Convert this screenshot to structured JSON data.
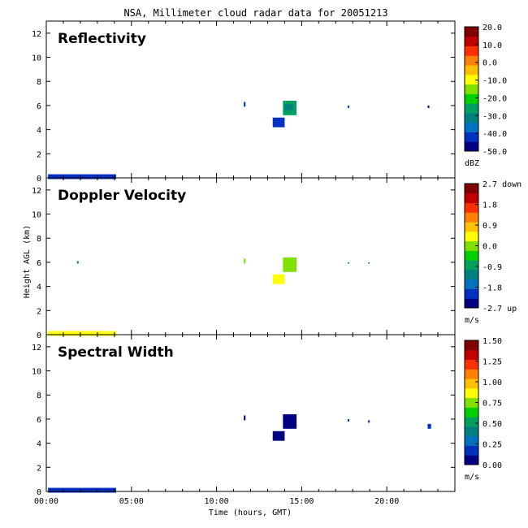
{
  "chart_data": {
    "type": "heatmap",
    "title": "NSA, Millimeter cloud radar data for 20051213",
    "xlabel": "Time (hours, GMT)",
    "ylabel": "Height AGL (km)",
    "xlim": [
      0,
      24
    ],
    "ylim": [
      0,
      13
    ],
    "x_ticks": [
      {
        "value": 0,
        "label": "00:00"
      },
      {
        "value": 5,
        "label": "05:00"
      },
      {
        "value": 10,
        "label": "10:00"
      },
      {
        "value": 15,
        "label": "15:00"
      },
      {
        "value": 20,
        "label": "20:00"
      }
    ],
    "y_ticks": [
      0,
      2,
      4,
      6,
      8,
      10,
      12
    ],
    "panels": [
      {
        "name": "Reflectivity",
        "colorbar": {
          "unit": "dBZ",
          "min": -50,
          "max": 20,
          "ticks": [
            {
              "value": 20,
              "label": "20.0"
            },
            {
              "value": 10,
              "label": "10.0"
            },
            {
              "value": 0,
              "label": "0.0"
            },
            {
              "value": -10,
              "label": "-10.0"
            },
            {
              "value": -20,
              "label": "-20.0"
            },
            {
              "value": -30,
              "label": "-30.0"
            },
            {
              "value": -40,
              "label": "-40.0"
            },
            {
              "value": -50,
              "label": "-50.0"
            }
          ]
        },
        "echoes": [
          {
            "t0": 11.6,
            "t1": 11.7,
            "h0": 5.9,
            "h1": 6.3,
            "value": -42
          },
          {
            "t0": 13.3,
            "t1": 14.0,
            "h0": 4.2,
            "h1": 5.0,
            "value": -43
          },
          {
            "t0": 13.9,
            "t1": 14.7,
            "h0": 5.2,
            "h1": 6.4,
            "value": -28
          },
          {
            "t0": 14.0,
            "t1": 14.5,
            "h0": 5.6,
            "h1": 6.1,
            "value": -33
          },
          {
            "t0": 17.7,
            "t1": 17.8,
            "h0": 5.8,
            "h1": 6.0,
            "value": -42
          },
          {
            "t0": 22.4,
            "t1": 22.5,
            "h0": 5.8,
            "h1": 6.0,
            "value": -45
          },
          {
            "t0": 0.1,
            "t1": 4.1,
            "h0": -0.1,
            "h1": 0.3,
            "value": -42
          }
        ]
      },
      {
        "name": "Doppler Velocity",
        "colorbar": {
          "unit": "m/s",
          "min": -2.7,
          "max": 2.7,
          "ticks": [
            {
              "value": 2.7,
              "label": "2.7 down"
            },
            {
              "value": 1.8,
              "label": "1.8"
            },
            {
              "value": 0.9,
              "label": "0.9"
            },
            {
              "value": 0.0,
              "label": "0.0"
            },
            {
              "value": -0.9,
              "label": "-0.9"
            },
            {
              "value": -1.8,
              "label": "-1.8"
            },
            {
              "value": -2.7,
              "label": "-2.7 up"
            }
          ]
        },
        "echoes": [
          {
            "t0": 11.6,
            "t1": 11.7,
            "h0": 5.9,
            "h1": 6.3,
            "value": 0.2
          },
          {
            "t0": 13.3,
            "t1": 14.0,
            "h0": 4.2,
            "h1": 5.0,
            "value": 0.3
          },
          {
            "t0": 13.9,
            "t1": 14.7,
            "h0": 5.2,
            "h1": 6.4,
            "value": 0.2
          },
          {
            "t0": 1.8,
            "t1": 1.9,
            "h0": 5.9,
            "h1": 6.1,
            "value": -1.5
          },
          {
            "t0": 17.7,
            "t1": 17.8,
            "h0": 5.9,
            "h1": 6.0,
            "value": -1.2
          },
          {
            "t0": 18.9,
            "t1": 19.0,
            "h0": 5.9,
            "h1": 6.0,
            "value": -1.3
          },
          {
            "t0": 0.1,
            "t1": 4.1,
            "h0": -0.1,
            "h1": 0.3,
            "value": 0.3
          }
        ]
      },
      {
        "name": "Spectral Width",
        "colorbar": {
          "unit": "m/s",
          "min": 0,
          "max": 1.5,
          "ticks": [
            {
              "value": 1.5,
              "label": "1.50"
            },
            {
              "value": 1.25,
              "label": "1.25"
            },
            {
              "value": 1.0,
              "label": "1.00"
            },
            {
              "value": 0.75,
              "label": "0.75"
            },
            {
              "value": 0.5,
              "label": "0.50"
            },
            {
              "value": 0.25,
              "label": "0.25"
            },
            {
              "value": 0.0,
              "label": "0.00"
            }
          ]
        },
        "echoes": [
          {
            "t0": 11.6,
            "t1": 11.7,
            "h0": 5.9,
            "h1": 6.3,
            "value": 0.1
          },
          {
            "t0": 13.3,
            "t1": 14.0,
            "h0": 4.2,
            "h1": 5.0,
            "value": 0.08
          },
          {
            "t0": 13.9,
            "t1": 14.7,
            "h0": 5.2,
            "h1": 6.4,
            "value": 0.1
          },
          {
            "t0": 17.7,
            "t1": 17.8,
            "h0": 5.8,
            "h1": 6.0,
            "value": 0.15
          },
          {
            "t0": 18.9,
            "t1": 19.0,
            "h0": 5.7,
            "h1": 5.9,
            "value": 0.12
          },
          {
            "t0": 22.4,
            "t1": 22.6,
            "h0": 5.2,
            "h1": 5.6,
            "value": 0.15
          },
          {
            "t0": 0.1,
            "t1": 4.1,
            "h0": -0.1,
            "h1": 0.3,
            "value": 0.2
          }
        ]
      }
    ],
    "colormap": [
      "#000080",
      "#0030c0",
      "#0070c0",
      "#008080",
      "#00a060",
      "#00d000",
      "#80e000",
      "#ffff00",
      "#ffc000",
      "#ff8000",
      "#ff3000",
      "#c00000",
      "#800000"
    ]
  }
}
